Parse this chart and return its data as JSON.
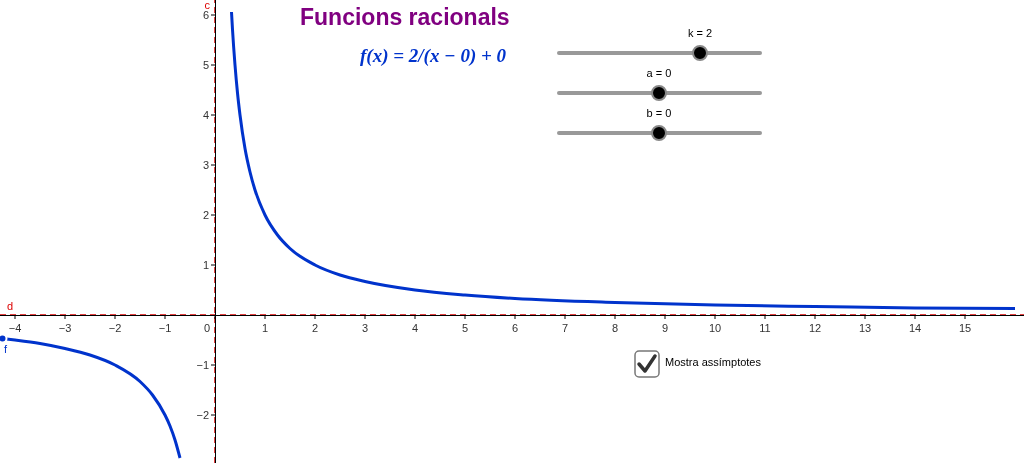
{
  "chart_data": {
    "type": "line",
    "title": "Funcions racionals",
    "x": [
      -4.25,
      -4,
      -3.5,
      -3,
      -2.5,
      -2,
      -1.5,
      -1.25,
      -1,
      -0.9,
      -0.8,
      -0.7,
      0,
      0.33,
      0.35,
      0.4,
      0.45,
      0.5,
      0.6,
      0.7,
      0.8,
      1,
      1.25,
      1.5,
      2,
      2.5,
      3,
      4,
      5,
      6,
      8,
      10,
      12,
      14,
      16
    ],
    "series": [
      {
        "name": "f",
        "color": "#0033cc",
        "values": [
          -0.47,
          -0.5,
          -0.57,
          -0.67,
          -0.8,
          -1,
          -1.33,
          -1.6,
          -2,
          -2.22,
          -2.5,
          -2.86,
          null,
          6.06,
          5.71,
          5,
          4.44,
          4,
          3.33,
          2.86,
          2.5,
          2,
          1.6,
          1.33,
          1,
          0.8,
          0.67,
          0.5,
          0.4,
          0.33,
          0.25,
          0.2,
          0.17,
          0.14,
          0.13
        ]
      }
    ],
    "xlim": [
      -4.3,
      16.18
    ],
    "ylim": [
      -2.96,
      6.3
    ],
    "xticks": [
      -4,
      -3,
      -2,
      -1,
      0,
      1,
      2,
      3,
      4,
      5,
      6,
      7,
      8,
      9,
      10,
      11,
      12,
      13,
      14,
      15
    ],
    "yticks": [
      -2,
      -1,
      1,
      2,
      3,
      4,
      5,
      6
    ],
    "ref_lines": [
      {
        "axis": "x",
        "value": 0,
        "label": "c",
        "color": "#dd0000",
        "line_style": "dashed"
      },
      {
        "axis": "y",
        "value": 0,
        "label": "d",
        "color": "#dd0000",
        "line_style": "dashed"
      }
    ],
    "annotations": [
      "f(x) = 2/(x − 0) + 0",
      "k = 2",
      "a = 0",
      "b = 0",
      "Mostra assímptotes"
    ],
    "marker": "none",
    "line_style": "solid"
  }
}
